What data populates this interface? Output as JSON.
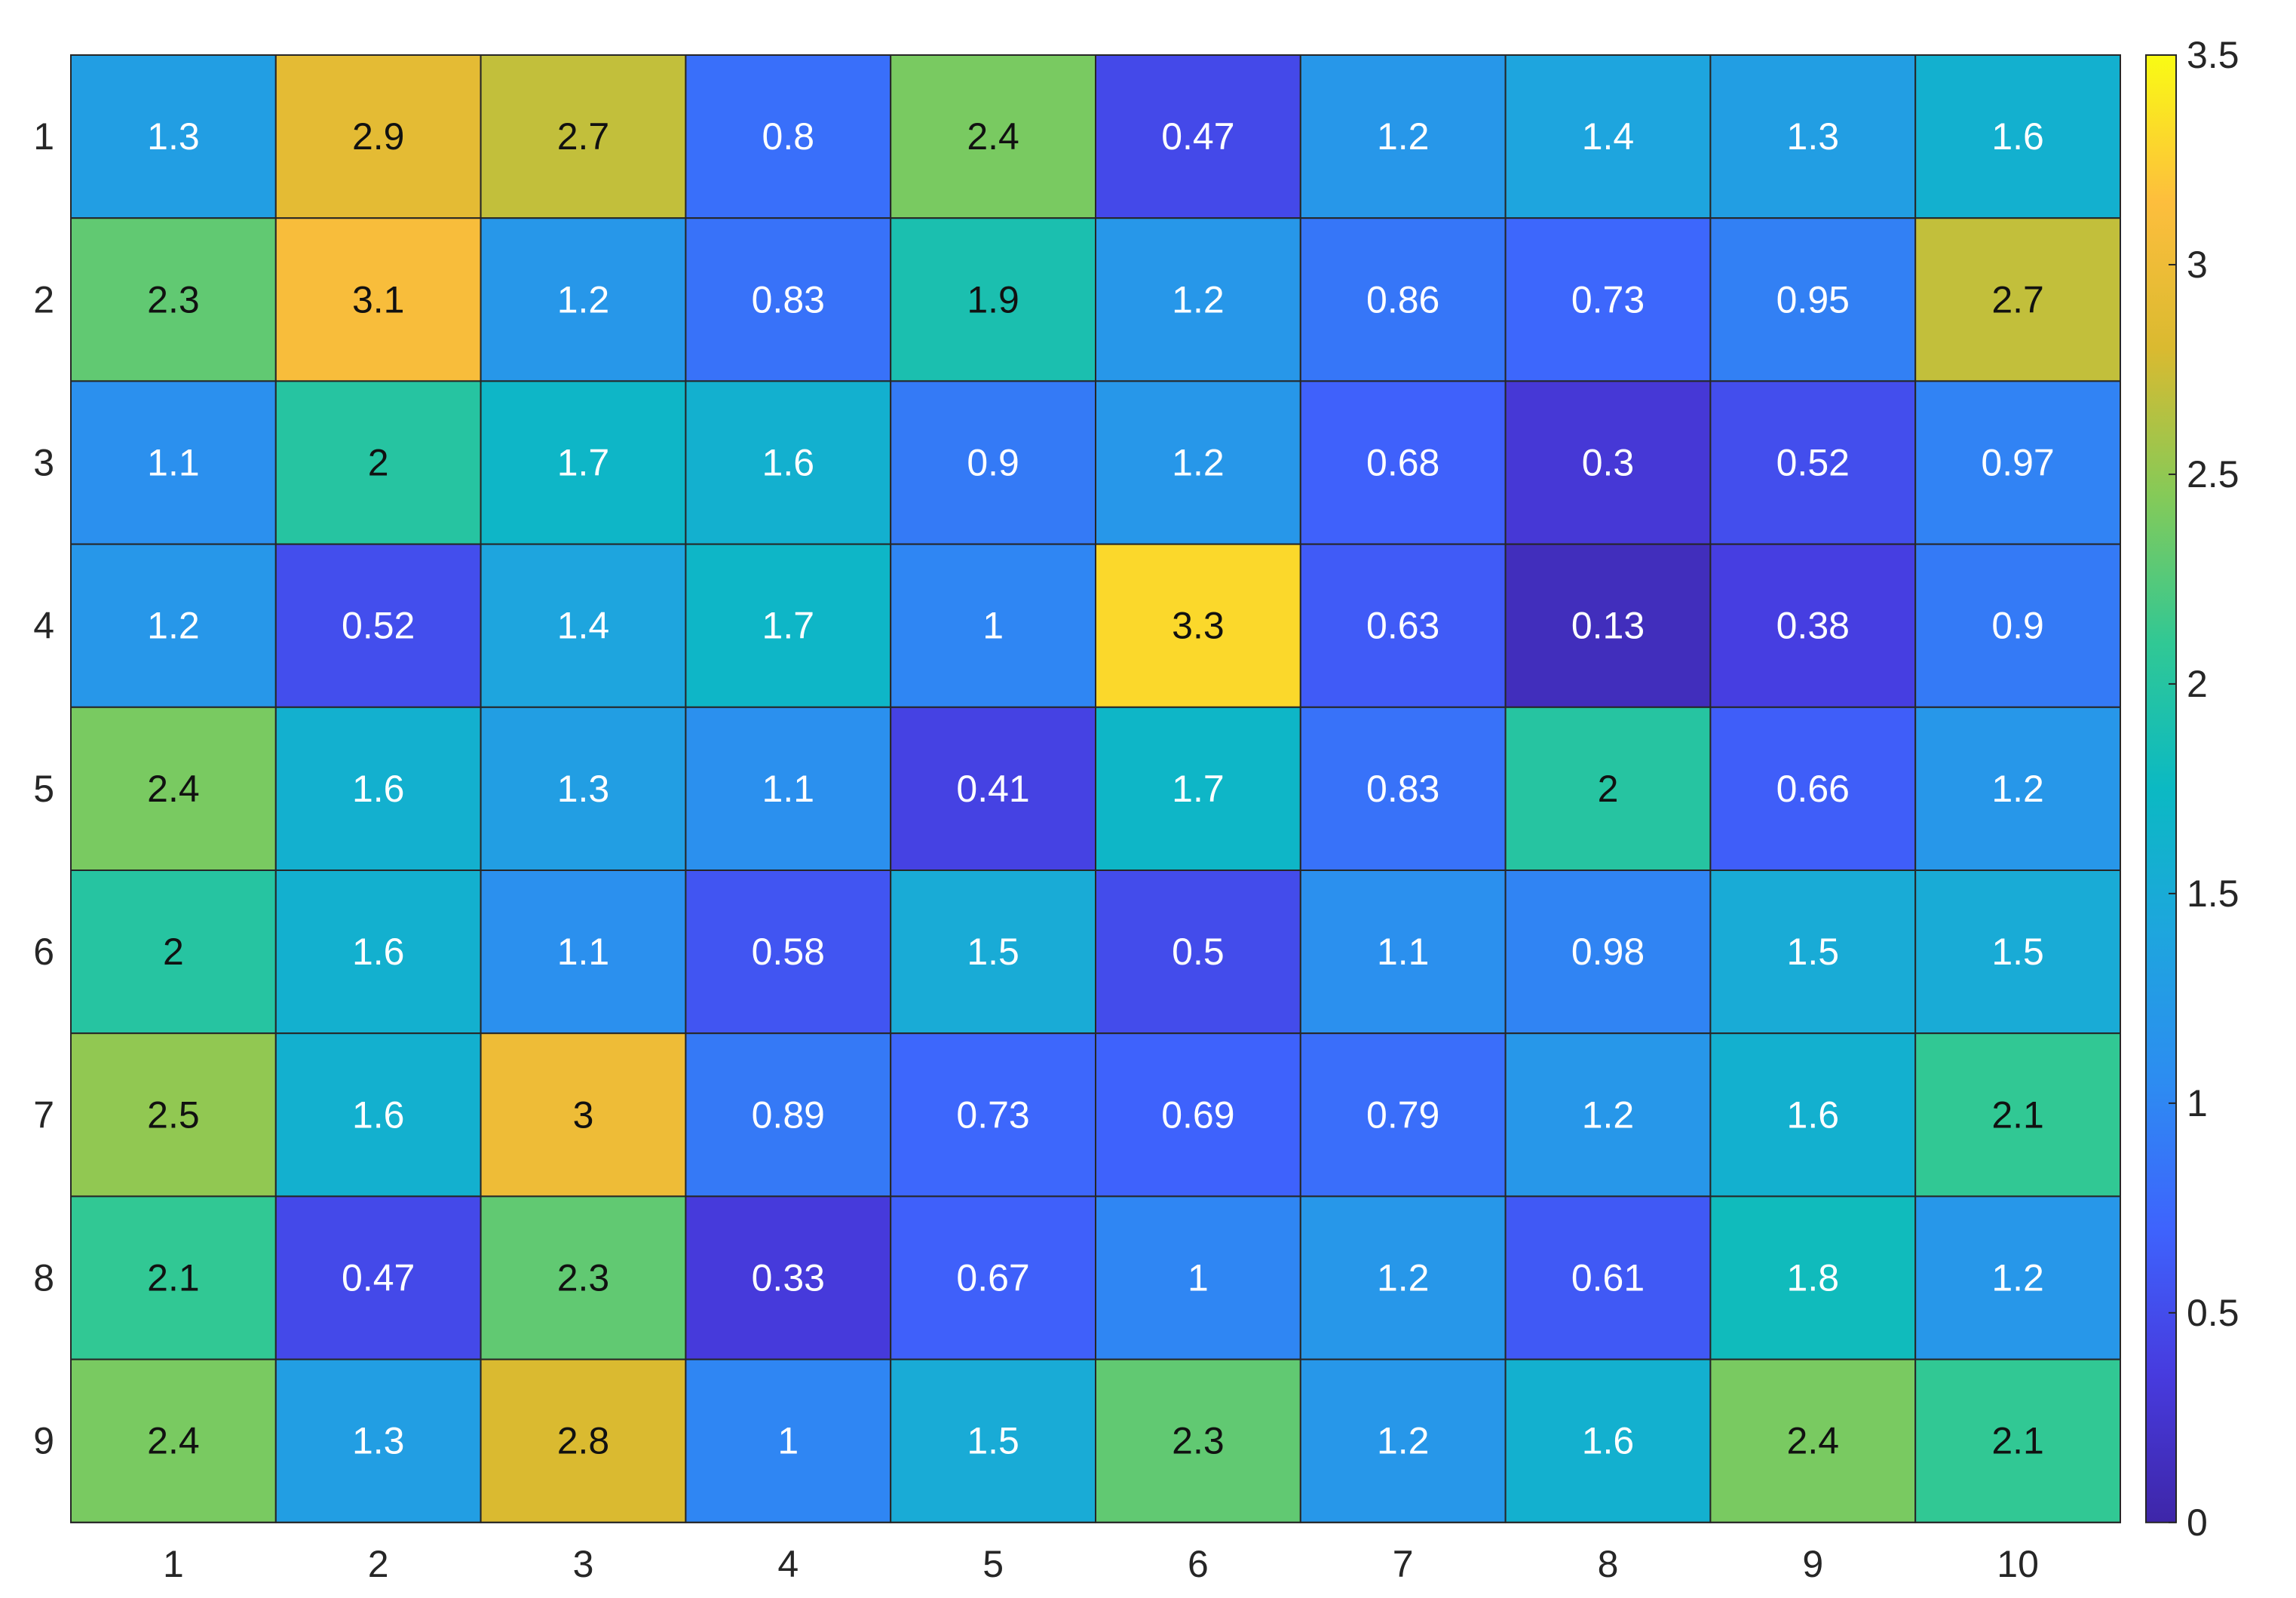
{
  "chart_data": {
    "type": "heatmap",
    "title": "",
    "xlabel": "",
    "ylabel": "",
    "x_categories": [
      "1",
      "2",
      "3",
      "4",
      "5",
      "6",
      "7",
      "8",
      "9",
      "10"
    ],
    "y_categories": [
      "1",
      "2",
      "3",
      "4",
      "5",
      "6",
      "7",
      "8",
      "9"
    ],
    "cells": [
      [
        "1.3",
        "2.9",
        "2.7",
        "0.8",
        "2.4",
        "0.47",
        "1.2",
        "1.4",
        "1.3",
        "1.6"
      ],
      [
        "2.3",
        "3.1",
        "1.2",
        "0.83",
        "1.9",
        "1.2",
        "0.86",
        "0.73",
        "0.95",
        "2.7"
      ],
      [
        "1.1",
        "2",
        "1.7",
        "1.6",
        "0.9",
        "1.2",
        "0.68",
        "0.3",
        "0.52",
        "0.97"
      ],
      [
        "1.2",
        "0.52",
        "1.4",
        "1.7",
        "1",
        "3.3",
        "0.63",
        "0.13",
        "0.38",
        "0.9"
      ],
      [
        "2.4",
        "1.6",
        "1.3",
        "1.1",
        "0.41",
        "1.7",
        "0.83",
        "2",
        "0.66",
        "1.2"
      ],
      [
        "2",
        "1.6",
        "1.1",
        "0.58",
        "1.5",
        "0.5",
        "1.1",
        "0.98",
        "1.5",
        "1.5"
      ],
      [
        "2.5",
        "1.6",
        "3",
        "0.89",
        "0.73",
        "0.69",
        "0.79",
        "1.2",
        "1.6",
        "2.1"
      ],
      [
        "2.1",
        "0.47",
        "2.3",
        "0.33",
        "0.67",
        "1",
        "1.2",
        "0.61",
        "1.8",
        "1.2"
      ],
      [
        "2.4",
        "1.3",
        "2.8",
        "1",
        "1.5",
        "2.3",
        "1.2",
        "1.6",
        "2.4",
        "2.1"
      ]
    ],
    "colorbar": {
      "min": 0,
      "max": 3.5,
      "ticks": [
        "0",
        "0.5",
        "1",
        "1.5",
        "2",
        "2.5",
        "3",
        "3.5"
      ]
    },
    "colormap": "parula",
    "grid": true
  }
}
